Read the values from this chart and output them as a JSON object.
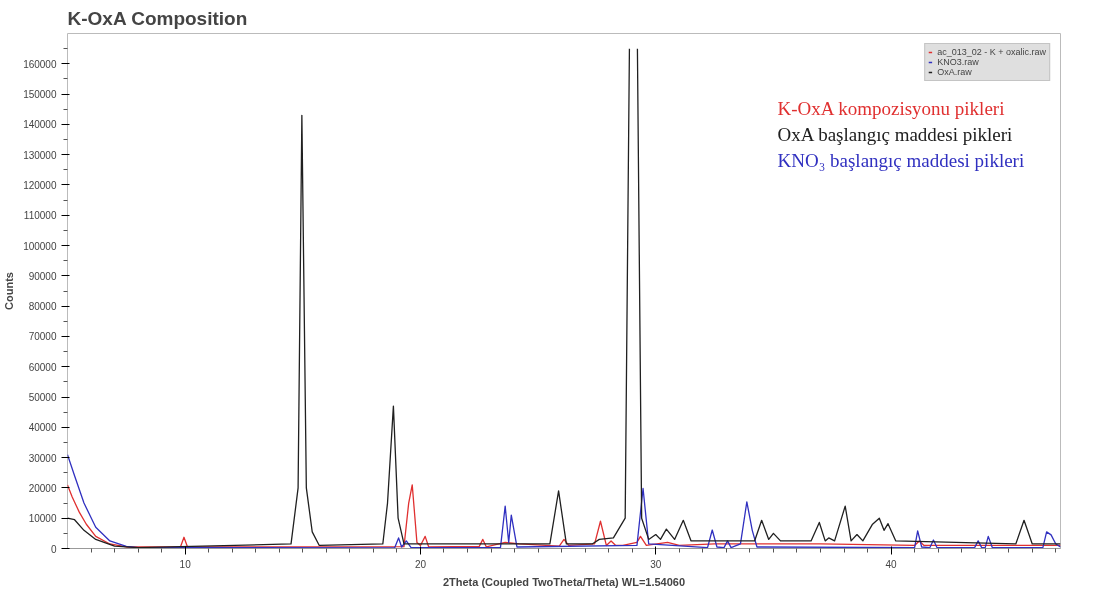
{
  "chart_data": {
    "type": "line",
    "title": "K-OxA Composition",
    "xlabel": "2Theta (Coupled TwoTheta/Theta) WL=1.54060",
    "ylabel": "Counts",
    "xlim": [
      5,
      47.2
    ],
    "ylim": [
      0,
      170000
    ],
    "xticks": [
      {
        "value": 6,
        "label": null
      },
      {
        "value": 7,
        "label": null
      },
      {
        "value": 8,
        "label": null
      },
      {
        "value": 9,
        "label": null
      },
      10,
      {
        "value": 11,
        "label": null
      },
      {
        "value": 12,
        "label": null
      },
      {
        "value": 13,
        "label": null
      },
      {
        "value": 14,
        "label": null
      },
      {
        "value": 15,
        "label": null
      },
      {
        "value": 16,
        "label": null
      },
      {
        "value": 17,
        "label": null
      },
      {
        "value": 18,
        "label": null
      },
      {
        "value": 19,
        "label": null
      },
      20,
      {
        "value": 21,
        "label": null
      },
      {
        "value": 22,
        "label": null
      },
      {
        "value": 23,
        "label": null
      },
      {
        "value": 24,
        "label": null
      },
      {
        "value": 25,
        "label": null
      },
      {
        "value": 26,
        "label": null
      },
      {
        "value": 27,
        "label": null
      },
      {
        "value": 28,
        "label": null
      },
      {
        "value": 29,
        "label": null
      },
      30,
      {
        "value": 31,
        "label": null
      },
      {
        "value": 32,
        "label": null
      },
      {
        "value": 33,
        "label": null
      },
      {
        "value": 34,
        "label": null
      },
      {
        "value": 35,
        "label": null
      },
      {
        "value": 36,
        "label": null
      },
      {
        "value": 37,
        "label": null
      },
      {
        "value": 38,
        "label": null
      },
      {
        "value": 39,
        "label": null
      },
      40,
      {
        "value": 41,
        "label": null
      },
      {
        "value": 42,
        "label": null
      },
      {
        "value": 43,
        "label": null
      },
      {
        "value": 44,
        "label": null
      },
      {
        "value": 45,
        "label": null
      },
      {
        "value": 46,
        "label": null
      },
      {
        "value": 47,
        "label": null
      }
    ],
    "yticks": [
      0,
      {
        "value": 5000,
        "label": null
      },
      10000,
      {
        "value": 15000,
        "label": null
      },
      20000,
      {
        "value": 25000,
        "label": null
      },
      30000,
      {
        "value": 35000,
        "label": null
      },
      40000,
      {
        "value": 45000,
        "label": null
      },
      50000,
      {
        "value": 55000,
        "label": null
      },
      60000,
      {
        "value": 65000,
        "label": null
      },
      70000,
      {
        "value": 75000,
        "label": null
      },
      80000,
      {
        "value": 85000,
        "label": null
      },
      90000,
      {
        "value": 95000,
        "label": null
      },
      100000,
      {
        "value": 105000,
        "label": null
      },
      110000,
      {
        "value": 115000,
        "label": null
      },
      120000,
      {
        "value": 125000,
        "label": null
      },
      130000,
      {
        "value": 135000,
        "label": null
      },
      140000,
      {
        "value": 145000,
        "label": null
      },
      150000,
      {
        "value": 155000,
        "label": null
      },
      160000,
      {
        "value": 165000,
        "label": null
      }
    ],
    "grid": false,
    "legend": "top right",
    "line_style": "solid",
    "marker": "none",
    "series": [
      {
        "name": "ac_013_02 - K + oxalic.raw",
        "color": "#e03030",
        "x": [
          5.0,
          5.2,
          5.5,
          5.8,
          6.2,
          6.8,
          7.5,
          9.8,
          9.95,
          10.1,
          19.3,
          19.5,
          19.65,
          19.85,
          20.0,
          20.2,
          20.35,
          22.5,
          22.65,
          22.8,
          23.6,
          24.2,
          25.9,
          26.1,
          26.3,
          27.4,
          27.65,
          27.9,
          28.1,
          28.3,
          28.6,
          29.2,
          29.35,
          29.6,
          30.5,
          31.0,
          32.5,
          37.0,
          41.0,
          41.2,
          41.4,
          47.2
        ],
        "values": [
          21000,
          17000,
          12000,
          8000,
          4000,
          1500,
          500,
          500,
          3700,
          500,
          600,
          15000,
          21000,
          2000,
          1000,
          4000,
          500,
          700,
          3000,
          500,
          2000,
          1500,
          800,
          3000,
          1000,
          1500,
          9000,
          1000,
          2500,
          1000,
          1000,
          2000,
          4000,
          1000,
          2000,
          1000,
          1500,
          1500,
          1000,
          2500,
          1000,
          1000
        ]
      },
      {
        "name": "KNO3.raw",
        "color": "#3030c0",
        "x": [
          5.0,
          5.3,
          5.7,
          6.2,
          6.8,
          7.5,
          8.0,
          18.9,
          19.07,
          19.2,
          19.4,
          19.6,
          23.4,
          23.6,
          23.75,
          23.86,
          24.1,
          29.2,
          29.46,
          29.7,
          32.2,
          32.4,
          32.6,
          32.9,
          33.05,
          33.2,
          33.6,
          33.87,
          34.1,
          34.3,
          41.0,
          41.13,
          41.3,
          41.65,
          41.8,
          41.95,
          43.55,
          43.7,
          43.85,
          44.0,
          44.13,
          44.3,
          46.45,
          46.61,
          46.8,
          47.0,
          47.2
        ],
        "values": [
          31000,
          24000,
          15000,
          7000,
          2500,
          700,
          300,
          200,
          3500,
          500,
          2500,
          300,
          300,
          14000,
          2000,
          11000,
          500,
          1000,
          19800,
          1500,
          300,
          6100,
          500,
          300,
          2500,
          300,
          1500,
          15400,
          6000,
          500,
          300,
          5800,
          500,
          300,
          2800,
          300,
          300,
          2500,
          300,
          300,
          4000,
          300,
          300,
          5500,
          4500,
          1500,
          500
        ]
      },
      {
        "name": "OxA.raw",
        "color": "#202020",
        "x": [
          5.0,
          5.3,
          5.7,
          6.2,
          7.0,
          8.0,
          14.5,
          14.8,
          14.96,
          15.15,
          15.4,
          15.7,
          18.4,
          18.6,
          18.85,
          19.05,
          19.3,
          25.5,
          25.87,
          26.2,
          27.3,
          27.6,
          28.2,
          28.7,
          28.88,
          29.05,
          29.22,
          29.4,
          29.7,
          30.0,
          30.2,
          30.45,
          30.8,
          31.17,
          31.5,
          34.2,
          34.5,
          34.8,
          35.0,
          35.3,
          36.6,
          36.95,
          37.2,
          37.35,
          37.6,
          38.05,
          38.3,
          38.55,
          38.8,
          39.2,
          39.5,
          39.7,
          39.87,
          40.2,
          45.3,
          45.65,
          46.0,
          47.2
        ],
        "values": [
          10000,
          9500,
          6000,
          3000,
          800,
          300,
          1500,
          20000,
          143000,
          20000,
          5500,
          1000,
          1500,
          15000,
          47000,
          10000,
          1500,
          1500,
          19000,
          1500,
          1500,
          3000,
          3500,
          10000,
          165000,
          null,
          165000,
          10000,
          3000,
          4600,
          3000,
          6400,
          3000,
          9300,
          2500,
          2500,
          9300,
          3000,
          5000,
          2500,
          2500,
          8600,
          2500,
          3500,
          2500,
          14000,
          2500,
          4600,
          2500,
          7900,
          10000,
          6000,
          8200,
          2500,
          1500,
          9300,
          1500,
          1500
        ]
      }
    ],
    "annotations": [
      "K-OxA kompozisyonu pikleri",
      "OxA başlangıç maddesi pikleri",
      "KNO₃ başlangıç maddesi pikleri"
    ]
  }
}
